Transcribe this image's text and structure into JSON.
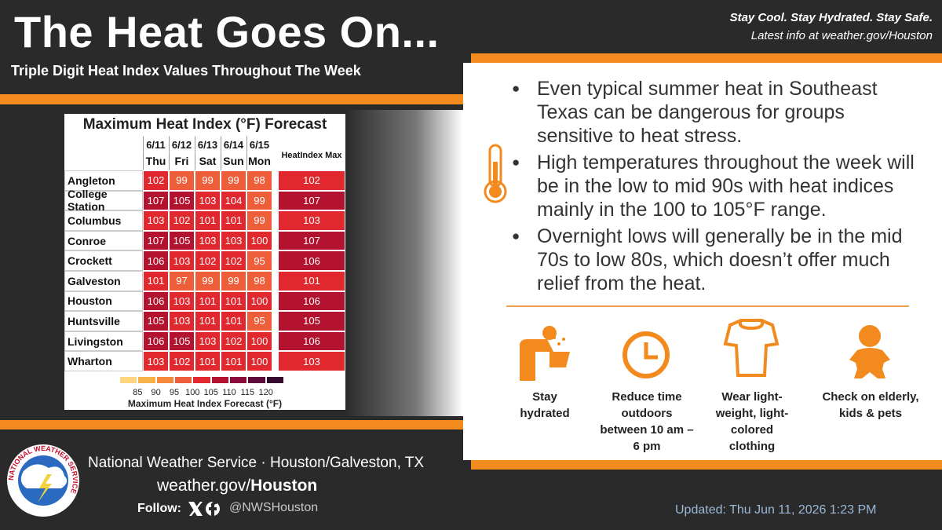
{
  "header": {
    "title": "The Heat Goes On...",
    "subtitle": "Triple Digit Heat Index Values Throughout The Week",
    "tagline": "Stay Cool. Stay Hydrated. Stay Safe.",
    "info": "Latest info at weather.gov/Houston"
  },
  "table": {
    "title": "Maximum Heat Index (°F) Forecast",
    "dates": [
      "6/11",
      "6/12",
      "6/13",
      "6/14",
      "6/15"
    ],
    "days": [
      "Thu",
      "Fri",
      "Sat",
      "Sun",
      "Mon"
    ],
    "max_header": "HeatIndex Max",
    "rows": [
      {
        "location": "Angleton",
        "values": [
          102,
          99,
          99,
          99,
          98
        ],
        "max": 102
      },
      {
        "location": "College Station",
        "values": [
          107,
          105,
          103,
          104,
          99
        ],
        "max": 107
      },
      {
        "location": "Columbus",
        "values": [
          103,
          102,
          101,
          101,
          99
        ],
        "max": 103
      },
      {
        "location": "Conroe",
        "values": [
          107,
          105,
          103,
          103,
          100
        ],
        "max": 107
      },
      {
        "location": "Crockett",
        "values": [
          106,
          103,
          102,
          102,
          95
        ],
        "max": 106
      },
      {
        "location": "Galveston",
        "values": [
          101,
          97,
          99,
          99,
          98
        ],
        "max": 101
      },
      {
        "location": "Houston",
        "values": [
          106,
          103,
          101,
          101,
          100
        ],
        "max": 106
      },
      {
        "location": "Huntsville",
        "values": [
          105,
          103,
          101,
          101,
          95
        ],
        "max": 105
      },
      {
        "location": "Livingston",
        "values": [
          106,
          105,
          103,
          102,
          100
        ],
        "max": 106
      },
      {
        "location": "Wharton",
        "values": [
          103,
          102,
          101,
          101,
          100
        ],
        "max": 103
      }
    ],
    "scale": {
      "ticks": [
        85,
        90,
        95,
        100,
        105,
        110,
        115,
        120
      ],
      "colors": [
        "#fcd57e",
        "#f9b24a",
        "#f68a3c",
        "#ee5e3a",
        "#e0282e",
        "#b3132f",
        "#8a0b3b",
        "#5c0a3c",
        "#35082e"
      ],
      "label": "Maximum Heat Index Forecast (°F)"
    }
  },
  "bullets": [
    "Even typical summer heat in Southeast Texas can be dangerous for groups sensitive to heat stress.",
    "High temperatures throughout the week will be in the low to mid 90s with heat indices mainly in the 100 to 105°F range.",
    "Overnight lows will generally be in the mid 70s to low 80s, which doesn’t offer much relief from the heat."
  ],
  "tips": [
    "Stay hydrated",
    "Reduce time outdoors between 10 am – 6 pm",
    "Wear light-weight, light-colored clothing",
    "Check on elderly, kids & pets"
  ],
  "footer": {
    "logo_text": "NATIONAL WEATHER SERVICE",
    "org": "National Weather Service · Houston/Galveston, TX",
    "site": "weather.gov/",
    "site_bold": "Houston",
    "follow": "Follow:",
    "handle": "@NWSHouston",
    "updated": "Updated: Thu Jun 11, 2026 1:23 PM"
  }
}
